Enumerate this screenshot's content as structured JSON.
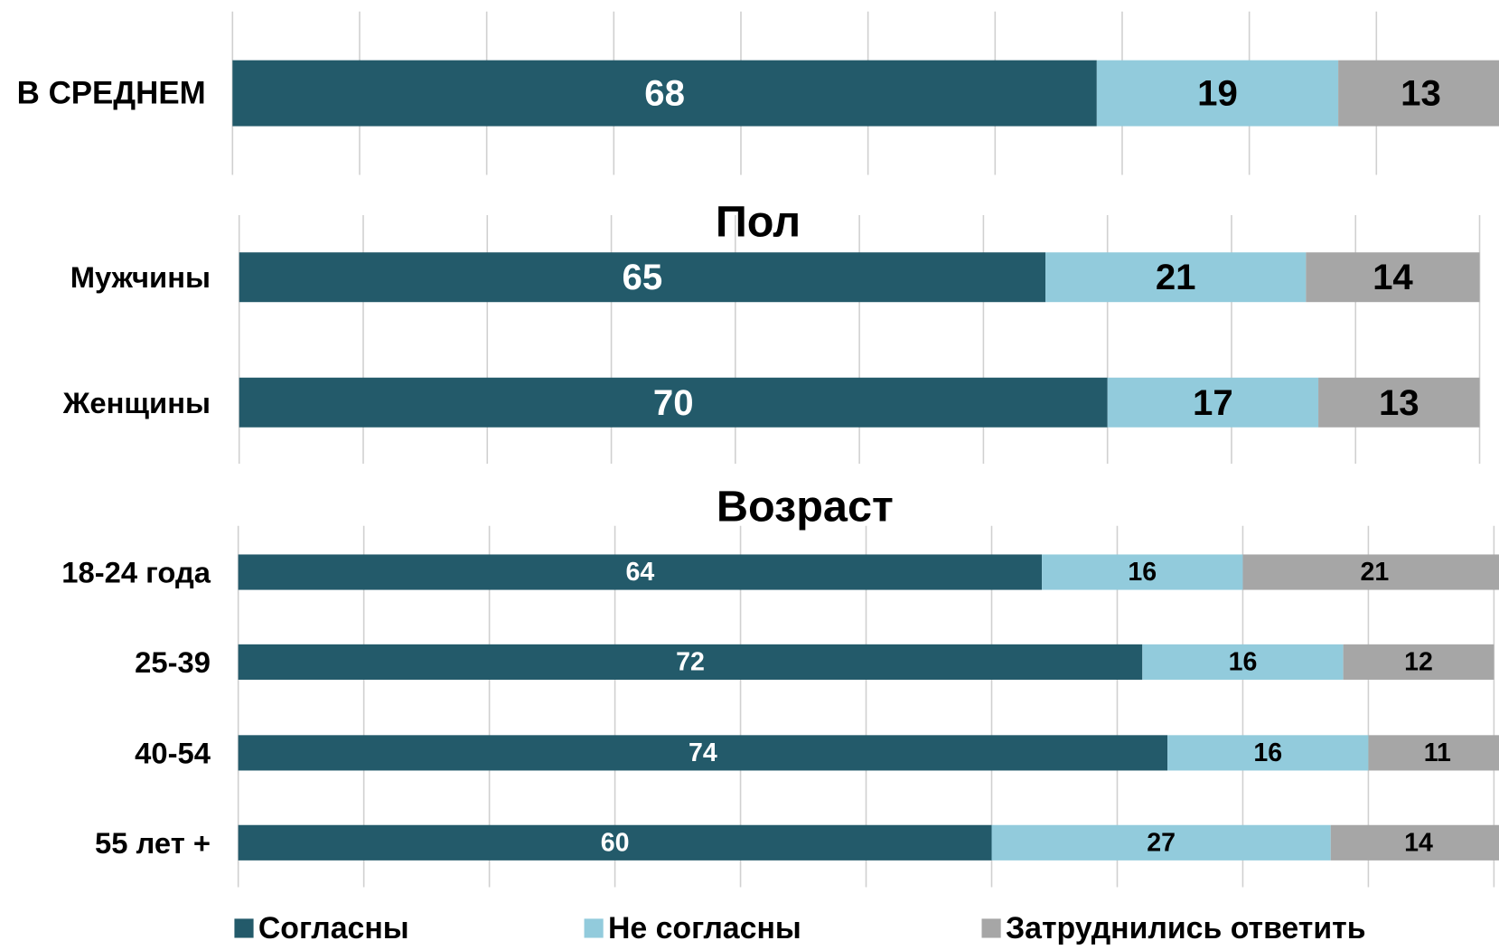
{
  "chart_data": [
    {
      "type": "bar",
      "stacked": true,
      "orientation": "horizontal",
      "categories": [
        "В СРЕДНЕМ"
      ],
      "series": [
        {
          "name": "Согласны",
          "color": "#235a6a",
          "values": [
            68
          ]
        },
        {
          "name": "Не согласны",
          "color": "#92cbdc",
          "values": [
            19
          ]
        },
        {
          "name": "Затруднились ответить",
          "color": "#a6a6a6",
          "values": [
            13
          ]
        }
      ],
      "xlim": [
        0,
        100
      ],
      "xticks": [
        0,
        10,
        20,
        30,
        40,
        50,
        60,
        70,
        80,
        90,
        100
      ],
      "grid": true
    },
    {
      "type": "bar",
      "stacked": true,
      "orientation": "horizontal",
      "title": "Пол",
      "categories": [
        "Мужчины",
        "Женщины"
      ],
      "series": [
        {
          "name": "Согласны",
          "color": "#235a6a",
          "values": [
            65,
            70
          ]
        },
        {
          "name": "Не согласны",
          "color": "#92cbdc",
          "values": [
            21,
            17
          ]
        },
        {
          "name": "Затруднились ответить",
          "color": "#a6a6a6",
          "values": [
            14,
            13
          ]
        }
      ],
      "xlim": [
        0,
        100
      ],
      "xticks": [
        0,
        10,
        20,
        30,
        40,
        50,
        60,
        70,
        80,
        90,
        100
      ],
      "grid": true
    },
    {
      "type": "bar",
      "stacked": true,
      "orientation": "horizontal",
      "title": "Возраст",
      "categories": [
        "18-24 года",
        "25-39",
        "40-54",
        "55 лет +"
      ],
      "series": [
        {
          "name": "Согласны",
          "color": "#235a6a",
          "values": [
            64,
            72,
            74,
            60
          ]
        },
        {
          "name": "Не согласны",
          "color": "#92cbdc",
          "values": [
            16,
            16,
            16,
            27
          ]
        },
        {
          "name": "Затруднились ответить",
          "color": "#a6a6a6",
          "values": [
            21,
            12,
            11,
            14
          ]
        }
      ],
      "xlim": [
        0,
        100
      ],
      "xticks": [
        0,
        10,
        20,
        30,
        40,
        50,
        60,
        70,
        80,
        90,
        100
      ],
      "grid": true
    }
  ]
}
